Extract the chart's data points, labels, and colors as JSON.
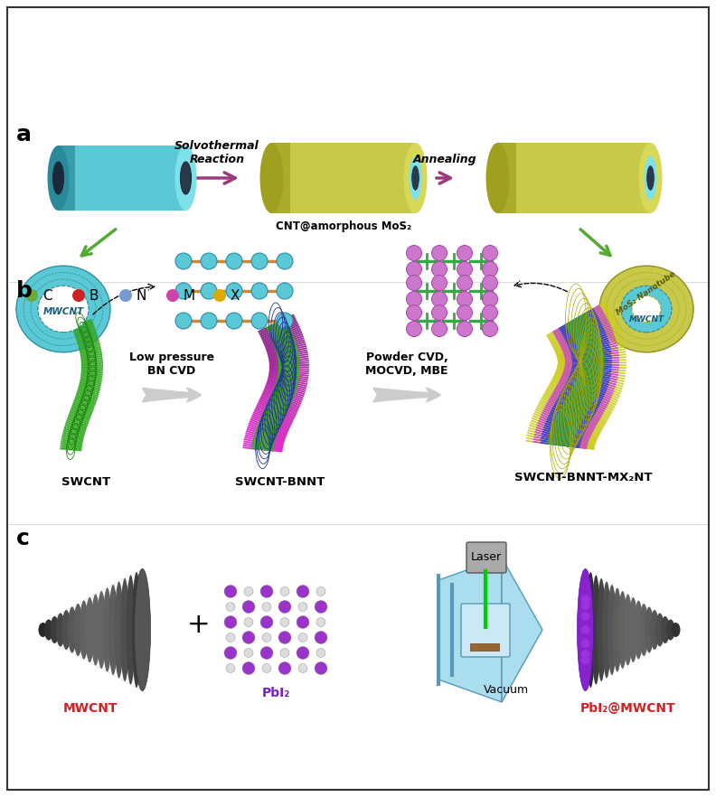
{
  "panel_a_label": "a",
  "panel_b_label": "b",
  "panel_c_label": "c",
  "arrow1_text": "Solvothermal\nReaction",
  "arrow2_text": "Annealing",
  "cntamorphous_text": "CNT@amorphous MoS₂",
  "mwcnt_text": "MWCNT",
  "mos2_nanotube_text": "MoS₂ Nanotube",
  "legend_items": [
    {
      "label": "C",
      "color": "#6aaa3a"
    },
    {
      "label": "B",
      "color": "#cc2222"
    },
    {
      "label": "N",
      "color": "#7799cc"
    },
    {
      "label": "M",
      "color": "#cc44aa"
    },
    {
      "label": "X",
      "color": "#ddaa00"
    }
  ],
  "lp_bncvd_text": "Low pressure\nBN CVD",
  "powder_cvd_text": "Powder CVD,\nMOCVD, MBE",
  "swcnt_text": "SWCNT",
  "swcnt_bnnt_text": "SWCNT-BNNT",
  "swcnt_bnnt_mx2_text": "SWCNT-BNNT-MX₂NT",
  "mwcnt_c_label": "MWCNT",
  "pbi2_label": "PbI₂",
  "pbi2_mwcnt_label": "PbI₂@MWCNT",
  "laser_label": "Laser",
  "vacuum_label": "Vacuum",
  "plus_sign": "+",
  "cnt_color": "#5bc8d5",
  "mos2_color": "#c8c84a",
  "arrow_color": "#9b3a7a",
  "green_arrow_color": "#55aa33",
  "bg_color": "#ffffff",
  "font_size_labels": 10,
  "font_size_panel": 16
}
